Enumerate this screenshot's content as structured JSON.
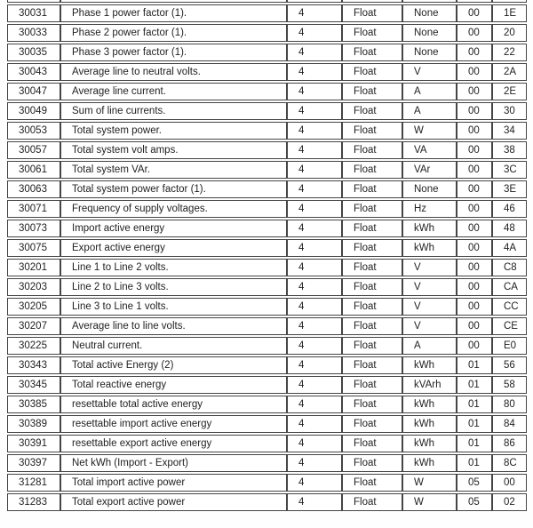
{
  "colors": {
    "background": "#ffffff",
    "border": "#454545",
    "text": "#222222"
  },
  "table": {
    "column_keys": [
      "register",
      "description",
      "size",
      "type",
      "units",
      "hi_byte",
      "lo_byte"
    ],
    "rows": [
      {
        "register": "30031",
        "description": "Phase 1 power factor (1).",
        "size": "4",
        "type": "Float",
        "units": "None",
        "hi_byte": "00",
        "lo_byte": "1E"
      },
      {
        "register": "30033",
        "description": "Phase 2 power factor (1).",
        "size": "4",
        "type": "Float",
        "units": "None",
        "hi_byte": "00",
        "lo_byte": "20"
      },
      {
        "register": "30035",
        "description": "Phase 3 power factor (1).",
        "size": "4",
        "type": "Float",
        "units": "None",
        "hi_byte": "00",
        "lo_byte": "22"
      },
      {
        "register": "30043",
        "description": "Average line to neutral volts.",
        "size": "4",
        "type": "Float",
        "units": "V",
        "hi_byte": "00",
        "lo_byte": "2A"
      },
      {
        "register": "30047",
        "description": "Average line current.",
        "size": "4",
        "type": "Float",
        "units": "A",
        "hi_byte": "00",
        "lo_byte": "2E"
      },
      {
        "register": "30049",
        "description": "Sum of line currents.",
        "size": "4",
        "type": "Float",
        "units": "A",
        "hi_byte": "00",
        "lo_byte": "30"
      },
      {
        "register": "30053",
        "description": "Total system power.",
        "size": "4",
        "type": "Float",
        "units": "W",
        "hi_byte": "00",
        "lo_byte": "34"
      },
      {
        "register": "30057",
        "description": "Total system volt amps.",
        "size": "4",
        "type": "Float",
        "units": "VA",
        "hi_byte": "00",
        "lo_byte": "38"
      },
      {
        "register": "30061",
        "description": "Total system VAr.",
        "size": "4",
        "type": "Float",
        "units": "VAr",
        "hi_byte": "00",
        "lo_byte": "3C"
      },
      {
        "register": "30063",
        "description": "Total system power factor (1).",
        "size": "4",
        "type": "Float",
        "units": "None",
        "hi_byte": "00",
        "lo_byte": "3E"
      },
      {
        "register": "30071",
        "description": "Frequency of supply voltages.",
        "size": "4",
        "type": "Float",
        "units": "Hz",
        "hi_byte": "00",
        "lo_byte": "46"
      },
      {
        "register": "30073",
        "description": "Import active energy",
        "size": "4",
        "type": "Float",
        "units": "kWh",
        "hi_byte": "00",
        "lo_byte": "48"
      },
      {
        "register": "30075",
        "description": "Export active energy",
        "size": "4",
        "type": "Float",
        "units": "kWh",
        "hi_byte": "00",
        "lo_byte": "4A"
      },
      {
        "register": "30201",
        "description": "Line 1 to Line 2 volts.",
        "size": "4",
        "type": "Float",
        "units": "V",
        "hi_byte": "00",
        "lo_byte": "C8"
      },
      {
        "register": "30203",
        "description": "Line 2 to Line 3 volts.",
        "size": "4",
        "type": "Float",
        "units": "V",
        "hi_byte": "00",
        "lo_byte": "CA"
      },
      {
        "register": "30205",
        "description": "Line 3 to Line 1 volts.",
        "size": "4",
        "type": "Float",
        "units": "V",
        "hi_byte": "00",
        "lo_byte": "CC"
      },
      {
        "register": "30207",
        "description": "Average line to line volts.",
        "size": "4",
        "type": "Float",
        "units": "V",
        "hi_byte": "00",
        "lo_byte": "CE"
      },
      {
        "register": "30225",
        "description": "Neutral current.",
        "size": "4",
        "type": "Float",
        "units": "A",
        "hi_byte": "00",
        "lo_byte": "E0"
      },
      {
        "register": "30343",
        "description": "Total active Energy (2)",
        "size": "4",
        "type": "Float",
        "units": "kWh",
        "hi_byte": "01",
        "lo_byte": "56"
      },
      {
        "register": "30345",
        "description": "Total reactive energy",
        "size": "4",
        "type": "Float",
        "units": "kVArh",
        "hi_byte": "01",
        "lo_byte": "58"
      },
      {
        "register": "30385",
        "description": "resettable total active energy",
        "size": "4",
        "type": "Float",
        "units": "kWh",
        "hi_byte": "01",
        "lo_byte": "80"
      },
      {
        "register": "30389",
        "description": "resettable import active energy",
        "size": "4",
        "type": "Float",
        "units": "kWh",
        "hi_byte": "01",
        "lo_byte": "84"
      },
      {
        "register": "30391",
        "description": "resettable export active energy",
        "size": "4",
        "type": "Float",
        "units": "kWh",
        "hi_byte": "01",
        "lo_byte": "86"
      },
      {
        "register": "30397",
        "description": "Net kWh (Import - Export)",
        "size": "4",
        "type": "Float",
        "units": "kWh",
        "hi_byte": "01",
        "lo_byte": "8C"
      },
      {
        "register": "31281",
        "description": "Total import active power",
        "size": "4",
        "type": "Float",
        "units": "W",
        "hi_byte": "05",
        "lo_byte": "00"
      },
      {
        "register": "31283",
        "description": "Total export active power",
        "size": "4",
        "type": "Float",
        "units": "W",
        "hi_byte": "05",
        "lo_byte": "02"
      }
    ]
  }
}
